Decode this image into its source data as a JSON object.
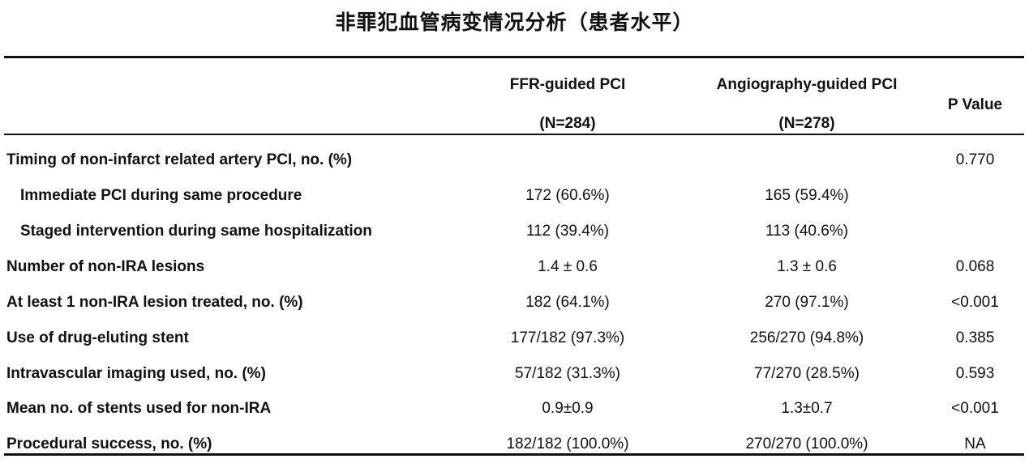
{
  "title": "非罪犯血管病变情况分析（患者水平）",
  "header": {
    "ffr_line1": "FFR-guided PCI",
    "ffr_line2": "(N=284)",
    "ang_line1": "Angiography-guided PCI",
    "ang_line2": "(N=278)",
    "p_value": "P Value"
  },
  "rows": [
    {
      "label": "Timing of non-infarct related artery PCI, no. (%)",
      "ffr": "",
      "ang": "",
      "p": "0.770",
      "indent": false
    },
    {
      "label": "Immediate PCI during same procedure",
      "ffr": "172 (60.6%)",
      "ang": "165 (59.4%)",
      "p": "",
      "indent": true
    },
    {
      "label": "Staged intervention during same hospitalization",
      "ffr": "112 (39.4%)",
      "ang": "113 (40.6%)",
      "p": "",
      "indent": true
    },
    {
      "label": "Number of non-IRA lesions",
      "ffr": "1.4 ± 0.6",
      "ang": "1.3 ± 0.6",
      "p": "0.068",
      "indent": false
    },
    {
      "label": "At least 1 non-IRA lesion treated, no. (%)",
      "ffr": "182 (64.1%)",
      "ang": "270 (97.1%)",
      "p": "<0.001",
      "indent": false
    },
    {
      "label": "Use of drug-eluting stent",
      "ffr": "177/182 (97.3%)",
      "ang": "256/270 (94.8%)",
      "p": "0.385",
      "indent": false
    },
    {
      "label": "Intravascular imaging used, no. (%)",
      "ffr": "57/182 (31.3%)",
      "ang": "77/270 (28.5%)",
      "p": "0.593",
      "indent": false
    },
    {
      "label": "Mean no. of stents used for non-IRA",
      "ffr": "0.9±0.9",
      "ang": "1.3±0.7",
      "p": "<0.001",
      "indent": false
    },
    {
      "label": "Procedural success, no. (%)",
      "ffr": "182/182 (100.0%)",
      "ang": "270/270 (100.0%)",
      "p": "NA",
      "indent": false
    }
  ]
}
